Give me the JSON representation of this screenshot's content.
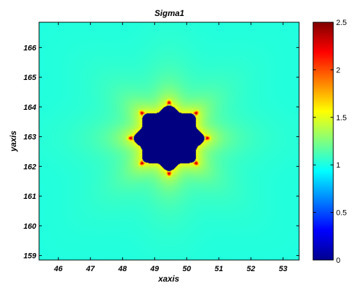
{
  "chart_data": {
    "type": "heatmap",
    "title": "Sigma1",
    "xlabel": "xaxis",
    "ylabel": "yaxis",
    "xlim": [
      45.4,
      53.5
    ],
    "ylim": [
      158.85,
      166.85
    ],
    "x_ticks": [
      46,
      47,
      48,
      49,
      50,
      51,
      52,
      53
    ],
    "y_ticks": [
      159,
      160,
      161,
      162,
      163,
      164,
      165,
      166
    ],
    "colorbar": {
      "colormap": "jet",
      "range": [
        0,
        2.5
      ],
      "ticks": [
        0,
        0.5,
        1,
        1.5,
        2,
        2.5
      ],
      "tick_labels": [
        "0",
        "0.5",
        "1",
        "1.5",
        "2",
        "2.5"
      ]
    },
    "field": {
      "hole_center": [
        49.45,
        162.95
      ],
      "hole_radius": 1.1,
      "far_field_value": 1.0,
      "hole_interior_value": 0.0,
      "rim_value": 1.55,
      "hotspot_value": 2.5,
      "hotspot_count": 8
    },
    "grid": false
  }
}
